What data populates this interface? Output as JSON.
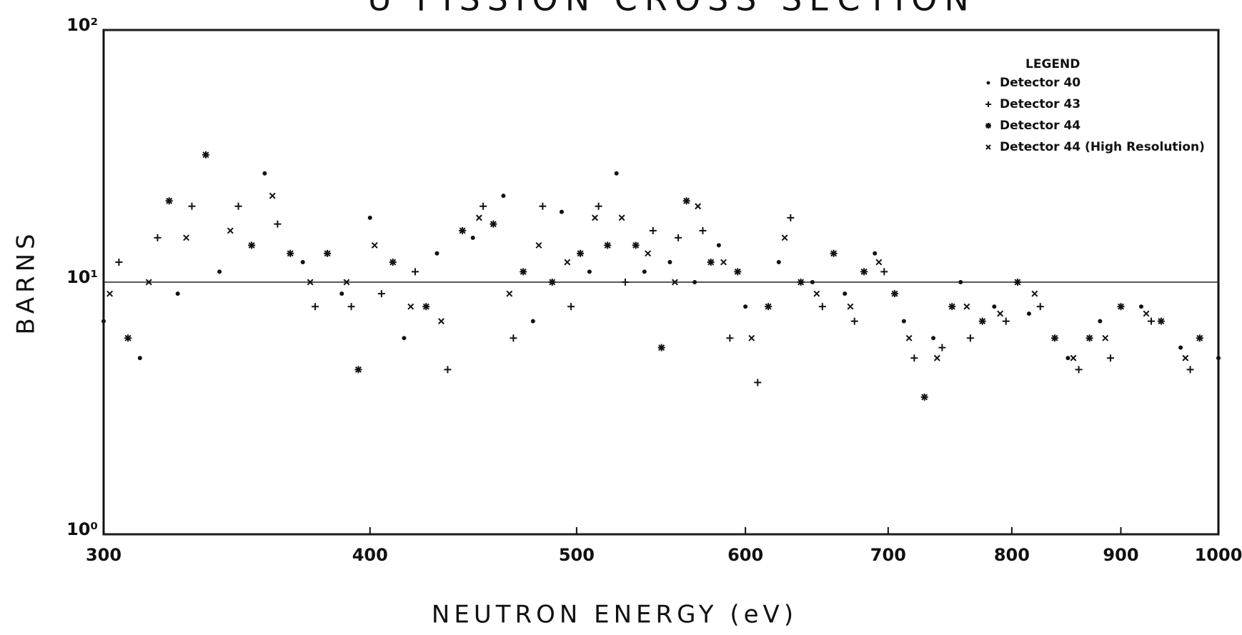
{
  "chart_data": {
    "type": "scatter",
    "title": "U FISSION CROSS SECTION",
    "x_label": "NEUTRON ENERGY (eV)",
    "y_label": "BARNS",
    "legend_title": "LEGEND",
    "xscale": "log",
    "yscale": "log",
    "xlim": [
      300,
      1000
    ],
    "ylim": [
      1,
      100
    ],
    "xticks": [
      300,
      400,
      500,
      600,
      700,
      800,
      900,
      1000
    ],
    "yticks": [
      {
        "value": 1,
        "label": "10⁰"
      },
      {
        "value": 10,
        "label": "10¹"
      },
      {
        "value": 100,
        "label": "10²"
      }
    ],
    "grid": true,
    "legend_position": "upper right",
    "series": [
      {
        "name": "Detector 40",
        "marker": "dot",
        "color": "#111111",
        "x": [
          300,
          312,
          325,
          340,
          357,
          372,
          388,
          400,
          415,
          430,
          447,
          462,
          477,
          492,
          507,
          522,
          538,
          553,
          568,
          583,
          600,
          622,
          645,
          668,
          690,
          712,
          735,
          757,
          785,
          815,
          850,
          880,
          920,
          960,
          1000
        ],
        "values": [
          7,
          5,
          9,
          11,
          27,
          12,
          9,
          18,
          6,
          13,
          15,
          22,
          7,
          19,
          11,
          27,
          11,
          12,
          10,
          14,
          8,
          12,
          10,
          9,
          13,
          7,
          6,
          10,
          8,
          7.5,
          5,
          7,
          8,
          5.5,
          5
        ]
      },
      {
        "name": "Detector 43",
        "marker": "plus",
        "color": "#111111",
        "x": [
          305,
          318,
          330,
          347,
          362,
          377,
          392,
          405,
          420,
          435,
          452,
          467,
          482,
          497,
          512,
          527,
          543,
          558,
          573,
          590,
          608,
          630,
          652,
          675,
          697,
          720,
          742,
          765,
          795,
          825,
          860,
          890,
          930,
          970
        ],
        "values": [
          12,
          15,
          20,
          20,
          17,
          8,
          8,
          9,
          11,
          4.5,
          20,
          6,
          20,
          8,
          20,
          10,
          16,
          15,
          16,
          6,
          4,
          18,
          8,
          7,
          11,
          5,
          5.5,
          6,
          7,
          8,
          4.5,
          5,
          7,
          4.5
        ]
      },
      {
        "name": "Detector 44",
        "marker": "star",
        "color": "#111111",
        "x": [
          308,
          322,
          335,
          352,
          367,
          382,
          395,
          410,
          425,
          442,
          457,
          472,
          487,
          502,
          517,
          533,
          548,
          563,
          578,
          595,
          615,
          637,
          660,
          682,
          705,
          728,
          750,
          775,
          805,
          838,
          870,
          900,
          940,
          980
        ],
        "values": [
          6,
          21,
          32,
          14,
          13,
          13,
          4.5,
          12,
          8,
          16,
          17,
          11,
          10,
          13,
          14,
          14,
          5.5,
          21,
          12,
          11,
          8,
          10,
          13,
          11,
          9,
          3.5,
          8,
          7,
          10,
          6,
          6,
          8,
          7,
          6
        ]
      },
      {
        "name": "Detector 44 (High Resolution)",
        "marker": "cross",
        "color": "#111111",
        "x": [
          302,
          315,
          328,
          344,
          360,
          375,
          390,
          402,
          418,
          432,
          450,
          465,
          480,
          495,
          510,
          525,
          540,
          556,
          570,
          586,
          604,
          626,
          648,
          672,
          693,
          716,
          738,
          762,
          790,
          820,
          855,
          885,
          925,
          965
        ],
        "values": [
          9,
          10,
          15,
          16,
          22,
          10,
          10,
          14,
          8,
          7,
          18,
          9,
          14,
          12,
          18,
          18,
          13,
          10,
          20,
          12,
          6,
          15,
          9,
          8,
          12,
          6,
          5,
          8,
          7.5,
          9,
          5,
          6,
          7.5,
          5
        ]
      }
    ]
  }
}
